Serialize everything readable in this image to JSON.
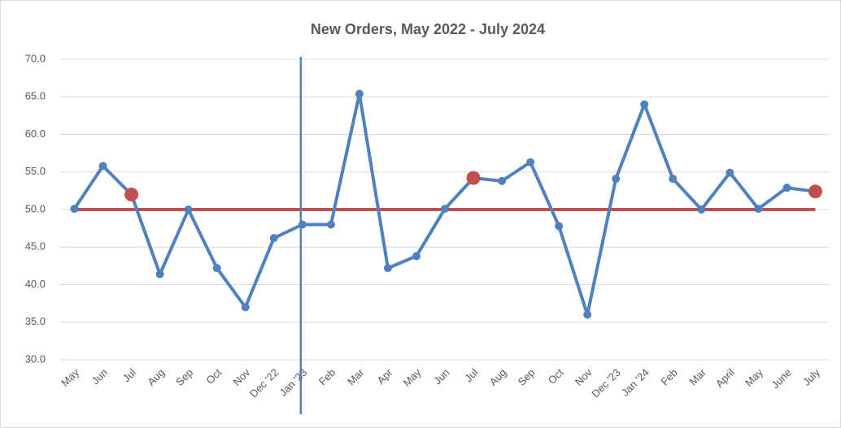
{
  "chart_data": {
    "type": "line",
    "title": "New Orders, May 2022 - July 2024",
    "categories": [
      "May",
      "Jun",
      "Jul",
      "Aug",
      "Sep",
      "Oct",
      "Nov",
      "Dec '22",
      "Jan '23",
      "Feb",
      "Mar",
      "Apr",
      "May",
      "Jun",
      "Jul",
      "Aug",
      "Sep",
      "Oct",
      "Nov",
      "Dec '23",
      "Jan '24",
      "Feb",
      "Mar",
      "April",
      "May",
      "June",
      "July"
    ],
    "series": [
      {
        "name": "New Orders",
        "color": "#4f81bd",
        "values": [
          50.1,
          55.8,
          52.0,
          41.4,
          50.0,
          42.2,
          37.0,
          46.2,
          48.0,
          48.0,
          65.4,
          42.2,
          43.8,
          50.1,
          54.2,
          53.8,
          56.3,
          47.8,
          36.0,
          54.1,
          64.0,
          54.1,
          50.0,
          54.9,
          50.1,
          52.9,
          52.4
        ]
      }
    ],
    "highlight_points": {
      "color": "#c0504d",
      "indices": [
        2,
        14,
        26
      ]
    },
    "reference_line": {
      "value": 50,
      "color": "#c0504d"
    },
    "vertical_line": {
      "category_index": 8,
      "color": "#4f81bd"
    },
    "ylim": [
      30,
      70
    ],
    "yticks": [
      {
        "value": 30,
        "label": "30.0"
      },
      {
        "value": 35,
        "label": "35.0"
      },
      {
        "value": 40,
        "label": "40.0"
      },
      {
        "value": 45,
        "label": "45.0"
      },
      {
        "value": 50,
        "label": "50.0"
      },
      {
        "value": 55,
        "label": "55.0"
      },
      {
        "value": 60,
        "label": "60.0"
      },
      {
        "value": 65,
        "label": "65.0"
      },
      {
        "value": 70,
        "label": "70.0"
      }
    ],
    "grid": true
  }
}
